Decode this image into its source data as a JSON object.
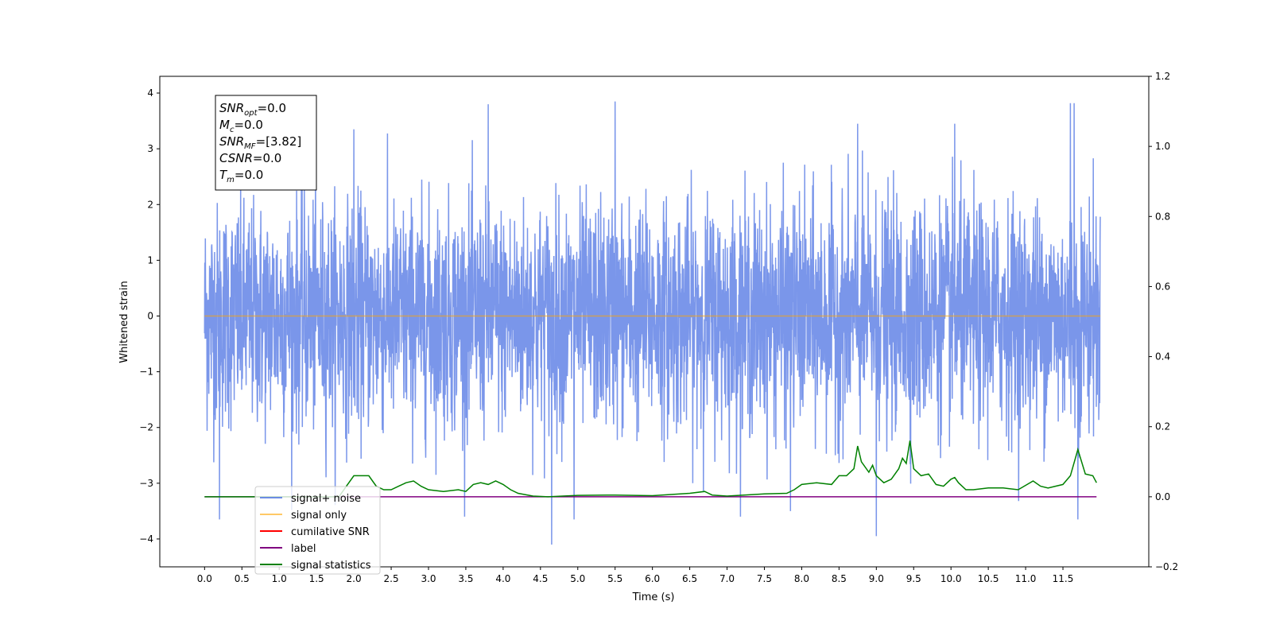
{
  "chart_data": {
    "type": "line",
    "title": "",
    "xlabel": "Time (s)",
    "ylabel": "Whitened strain",
    "y2label": "",
    "xlim": [
      -0.6,
      12.65
    ],
    "ylim": [
      -4.5,
      4.3
    ],
    "y2lim": [
      -0.2,
      1.2
    ],
    "x_ticks": [
      "0.0",
      "0.5",
      "1.0",
      "1.5",
      "2.0",
      "2.5",
      "3.0",
      "3.5",
      "4.0",
      "4.5",
      "5.0",
      "5.5",
      "6.0",
      "6.5",
      "7.0",
      "7.5",
      "8.0",
      "8.5",
      "9.0",
      "9.5",
      "10.0",
      "10.5",
      "11.0",
      "11.5"
    ],
    "y_ticks": [
      "4",
      "3",
      "2",
      "1",
      "0",
      "−1",
      "−2",
      "−3",
      "−4"
    ],
    "y2_ticks": [
      "1.2",
      "1.0",
      "0.8",
      "0.6",
      "0.4",
      "0.2",
      "0.0",
      "−0.2"
    ],
    "grid": false,
    "legend_position": "lower-left",
    "annotation_box": [
      {
        "sym": "SNR",
        "sub": "opt",
        "val": "=0.0"
      },
      {
        "sym": "M",
        "sub": "c",
        "val": "=0.0"
      },
      {
        "sym": "SNR",
        "sub": "MF",
        "val": "=[3.82]"
      },
      {
        "sym": "CSNR",
        "sub": "",
        "val": "=0.0"
      },
      {
        "sym": "T",
        "sub": "m",
        "val": "=0.0"
      }
    ],
    "series": [
      {
        "name": "signal+ noise",
        "color": "#4169e1",
        "axis": "left",
        "description_values": "white noise, approx std 1.0, min -4.1, max 3.85",
        "x_range": [
          0.0,
          12.0
        ],
        "noise_std": 1.0,
        "peaks": [
          {
            "x": 2.0,
            "y": 3.35
          },
          {
            "x": 3.8,
            "y": 3.8
          },
          {
            "x": 5.5,
            "y": 3.85
          },
          {
            "x": 8.75,
            "y": 3.45
          },
          {
            "x": 10.05,
            "y": 3.45
          },
          {
            "x": 11.6,
            "y": 3.82
          },
          {
            "x": 11.65,
            "y": 3.82
          },
          {
            "x": 0.2,
            "y": -3.65
          },
          {
            "x": 4.65,
            "y": -4.1
          },
          {
            "x": 4.95,
            "y": -3.65
          },
          {
            "x": 9.0,
            "y": -3.95
          },
          {
            "x": 11.7,
            "y": -3.65
          },
          {
            "x": 7.85,
            "y": -3.5
          }
        ]
      },
      {
        "name": "signal only",
        "color": "#ffa500",
        "axis": "left",
        "x": [
          0.0,
          12.0
        ],
        "y": [
          0.0,
          0.0
        ]
      },
      {
        "name": "cumilative SNR",
        "color": "#ff0000",
        "axis": "right",
        "x": [],
        "y": []
      },
      {
        "name": "label",
        "color": "#800080",
        "axis": "right",
        "x": [
          0.0,
          11.95
        ],
        "y": [
          0.0,
          0.0
        ]
      },
      {
        "name": "signal statistics",
        "color": "#008000",
        "axis": "right",
        "x": [
          0.0,
          1.8,
          1.9,
          2.0,
          2.1,
          2.2,
          2.3,
          2.4,
          2.5,
          2.6,
          2.7,
          2.8,
          2.9,
          3.0,
          3.2,
          3.4,
          3.5,
          3.6,
          3.7,
          3.8,
          3.9,
          4.0,
          4.1,
          4.2,
          4.4,
          4.6,
          4.8,
          5.0,
          5.5,
          6.0,
          6.5,
          6.7,
          6.8,
          7.0,
          7.5,
          7.8,
          7.9,
          8.0,
          8.2,
          8.4,
          8.5,
          8.6,
          8.7,
          8.75,
          8.8,
          8.9,
          8.95,
          9.0,
          9.1,
          9.2,
          9.3,
          9.35,
          9.4,
          9.45,
          9.5,
          9.6,
          9.7,
          9.8,
          9.9,
          10.0,
          10.05,
          10.1,
          10.2,
          10.3,
          10.5,
          10.7,
          10.9,
          11.1,
          11.2,
          11.3,
          11.4,
          11.5,
          11.6,
          11.7,
          11.8,
          11.9,
          11.95
        ],
        "y": [
          0.0,
          0.0,
          0.03,
          0.06,
          0.06,
          0.06,
          0.03,
          0.02,
          0.02,
          0.03,
          0.04,
          0.045,
          0.03,
          0.02,
          0.015,
          0.02,
          0.015,
          0.035,
          0.04,
          0.035,
          0.045,
          0.035,
          0.02,
          0.01,
          0.002,
          0.0,
          0.002,
          0.004,
          0.005,
          0.003,
          0.01,
          0.015,
          0.005,
          0.002,
          0.008,
          0.01,
          0.02,
          0.035,
          0.04,
          0.035,
          0.06,
          0.06,
          0.08,
          0.145,
          0.1,
          0.07,
          0.09,
          0.06,
          0.04,
          0.05,
          0.08,
          0.11,
          0.095,
          0.16,
          0.08,
          0.06,
          0.065,
          0.035,
          0.03,
          0.05,
          0.055,
          0.04,
          0.02,
          0.02,
          0.025,
          0.025,
          0.02,
          0.045,
          0.03,
          0.025,
          0.03,
          0.035,
          0.06,
          0.135,
          0.065,
          0.06,
          0.04
        ]
      }
    ]
  }
}
